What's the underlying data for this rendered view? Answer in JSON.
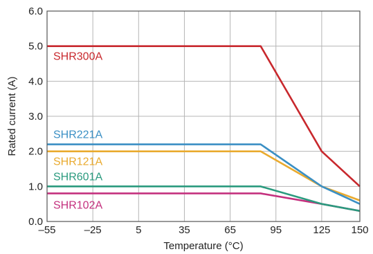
{
  "chart_data": {
    "type": "line",
    "xlabel": "Temperature (°C)",
    "ylabel": "Rated current (A)",
    "xlim": [
      -55,
      150
    ],
    "ylim": [
      0,
      6
    ],
    "x_ticks": [
      -55,
      -25,
      5,
      35,
      65,
      95,
      125,
      150
    ],
    "x_tick_labels": [
      "–55",
      "–25",
      "5",
      "35",
      "65",
      "95",
      "125",
      "150"
    ],
    "y_ticks": [
      0,
      1,
      2,
      3,
      4,
      5,
      6
    ],
    "y_tick_labels": [
      "0.0",
      "1.0",
      "2.0",
      "3.0",
      "4.0",
      "5.0",
      "6.0"
    ],
    "grid": true,
    "series": [
      {
        "name": "SHR300A",
        "color": "#c8282d",
        "points": [
          [
            -55,
            5.0
          ],
          [
            85,
            5.0
          ],
          [
            125,
            2.0
          ],
          [
            150,
            1.0
          ]
        ]
      },
      {
        "name": "SHR221A",
        "color": "#3a8fc4",
        "points": [
          [
            -55,
            2.2
          ],
          [
            85,
            2.2
          ],
          [
            125,
            1.0
          ],
          [
            150,
            0.5
          ]
        ]
      },
      {
        "name": "SHR121A",
        "color": "#e9aa2e",
        "points": [
          [
            -55,
            2.0
          ],
          [
            85,
            2.0
          ],
          [
            125,
            1.0
          ],
          [
            150,
            0.6
          ]
        ]
      },
      {
        "name": "SHR601A",
        "color": "#2a9a7e",
        "points": [
          [
            -55,
            1.0
          ],
          [
            85,
            1.0
          ],
          [
            125,
            0.5
          ],
          [
            150,
            0.3
          ]
        ]
      },
      {
        "name": "SHR102A",
        "color": "#c4307e",
        "points": [
          [
            -55,
            0.8
          ],
          [
            85,
            0.8
          ],
          [
            125,
            0.5
          ],
          [
            150,
            0.3
          ]
        ]
      }
    ]
  }
}
